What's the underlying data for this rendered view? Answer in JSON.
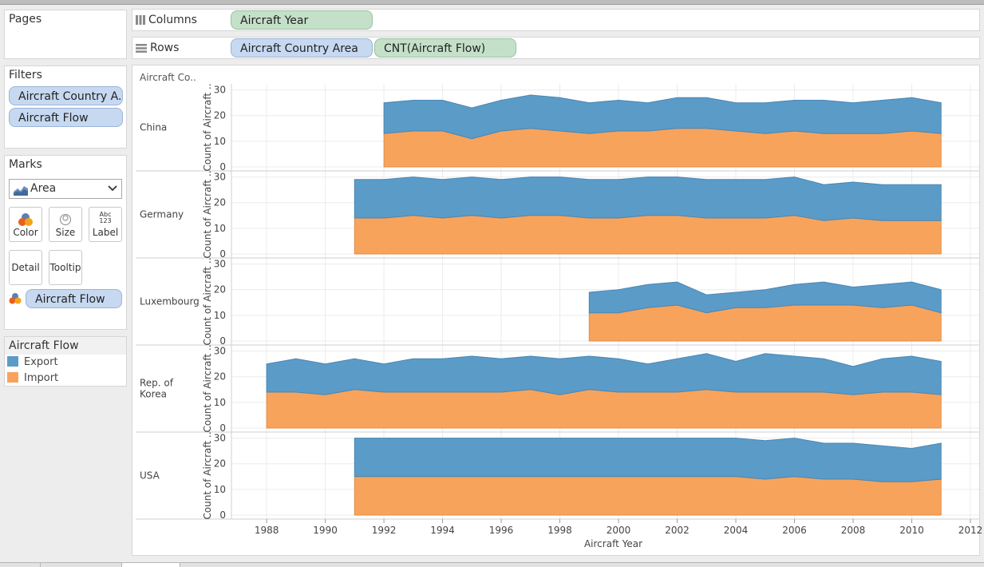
{
  "colors": {
    "export": "#5b9bc8",
    "import": "#f8a35b",
    "pill_blue": "#c6d9f1",
    "pill_green": "#c5e0c9"
  },
  "pages": {
    "title": "Pages"
  },
  "filters": {
    "title": "Filters",
    "items": [
      "Aircraft Country A..",
      "Aircraft Flow"
    ]
  },
  "marks": {
    "title": "Marks",
    "type": "Area",
    "buttons": {
      "color": "Color",
      "size": "Size",
      "label": "Label",
      "detail": "Detail",
      "tooltip": "Tooltip",
      "label_icon_text": "Abc\n123"
    },
    "color_field": "Aircraft Flow"
  },
  "legend": {
    "title": "Aircraft Flow",
    "items": [
      {
        "name": "Export",
        "color": "#5b9bc8"
      },
      {
        "name": "Import",
        "color": "#f8a35b"
      }
    ]
  },
  "shelves": {
    "columns": {
      "label": "Columns",
      "pills": [
        "Aircraft Year"
      ]
    },
    "rows": {
      "label": "Rows",
      "pills": [
        "Aircraft Country Area",
        "CNT(Aircraft Flow)"
      ]
    }
  },
  "chart_data": {
    "type": "area",
    "stacked": true,
    "row_header": "Aircraft Co..",
    "xlabel": "Aircraft Year",
    "ylabel": "Count of Aircraft ..",
    "xlim": [
      1986.8,
      2012.3
    ],
    "ylim": [
      0,
      30.5
    ],
    "x_ticks": [
      1988,
      1990,
      1992,
      1994,
      1996,
      1998,
      2000,
      2002,
      2004,
      2006,
      2008,
      2010,
      2012
    ],
    "y_ticks": [
      0,
      10,
      20,
      30
    ],
    "grid": true,
    "legend_placement": "left-panel",
    "panels": [
      {
        "country": "China",
        "x": [
          1992,
          1993,
          1994,
          1995,
          1996,
          1997,
          1998,
          1999,
          2000,
          2001,
          2002,
          2003,
          2004,
          2005,
          2006,
          2007,
          2008,
          2009,
          2010,
          2011
        ],
        "series": [
          {
            "name": "Import",
            "values": [
              13,
              14,
              14,
              11,
              14,
              15,
              14,
              13,
              14,
              14,
              15,
              15,
              14,
              13,
              14,
              13,
              13,
              13,
              14,
              13
            ]
          },
          {
            "name": "Export",
            "values": [
              12,
              12,
              12,
              12,
              12,
              13,
              13,
              12,
              12,
              11,
              12,
              12,
              11,
              12,
              12,
              13,
              12,
              13,
              13,
              12
            ]
          }
        ]
      },
      {
        "country": "Germany",
        "x": [
          1991,
          1992,
          1993,
          1994,
          1995,
          1996,
          1997,
          1998,
          1999,
          2000,
          2001,
          2002,
          2003,
          2004,
          2005,
          2006,
          2007,
          2008,
          2009,
          2010,
          2011
        ],
        "series": [
          {
            "name": "Import",
            "values": [
              14,
              14,
              15,
              14,
              15,
              14,
              15,
              15,
              14,
              14,
              15,
              15,
              14,
              14,
              14,
              15,
              13,
              14,
              13,
              13,
              13
            ]
          },
          {
            "name": "Export",
            "values": [
              15,
              15,
              15,
              15,
              15,
              15,
              15,
              15,
              15,
              15,
              15,
              15,
              15,
              15,
              15,
              15,
              14,
              14,
              14,
              14,
              14
            ]
          }
        ]
      },
      {
        "country": "Luxembourg",
        "x": [
          1999,
          2000,
          2001,
          2002,
          2003,
          2004,
          2005,
          2006,
          2007,
          2008,
          2009,
          2010,
          2011
        ],
        "series": [
          {
            "name": "Import",
            "values": [
              11,
              11,
              13,
              14,
              11,
              13,
              13,
              14,
              14,
              14,
              13,
              14,
              11
            ]
          },
          {
            "name": "Export",
            "values": [
              8,
              9,
              9,
              9,
              7,
              6,
              7,
              8,
              9,
              7,
              9,
              9,
              9
            ]
          }
        ]
      },
      {
        "country": "Rep. of\nKorea",
        "x": [
          1988,
          1989,
          1990,
          1991,
          1992,
          1993,
          1994,
          1995,
          1996,
          1997,
          1998,
          1999,
          2000,
          2001,
          2002,
          2003,
          2004,
          2005,
          2006,
          2007,
          2008,
          2009,
          2010,
          2011
        ],
        "series": [
          {
            "name": "Import",
            "values": [
              14,
              14,
              13,
              15,
              14,
              14,
              14,
              14,
              14,
              15,
              13,
              15,
              14,
              14,
              14,
              15,
              14,
              14,
              14,
              14,
              13,
              14,
              14,
              13
            ]
          },
          {
            "name": "Export",
            "values": [
              11,
              13,
              12,
              12,
              11,
              13,
              13,
              14,
              13,
              13,
              14,
              13,
              13,
              11,
              13,
              14,
              12,
              15,
              14,
              13,
              11,
              13,
              14,
              13
            ]
          }
        ]
      },
      {
        "country": "USA",
        "x": [
          1991,
          1992,
          1993,
          1994,
          1995,
          1996,
          1997,
          1998,
          1999,
          2000,
          2001,
          2002,
          2003,
          2004,
          2005,
          2006,
          2007,
          2008,
          2009,
          2010,
          2011
        ],
        "series": [
          {
            "name": "Import",
            "values": [
              15,
              15,
              15,
              15,
              15,
              15,
              15,
              15,
              15,
              15,
              15,
              15,
              15,
              15,
              14,
              15,
              14,
              14,
              13,
              13,
              14
            ]
          },
          {
            "name": "Export",
            "values": [
              15,
              15,
              15,
              15,
              15,
              15,
              15,
              15,
              15,
              15,
              15,
              15,
              15,
              15,
              15,
              15,
              14,
              14,
              14,
              13,
              14
            ]
          }
        ]
      }
    ]
  }
}
